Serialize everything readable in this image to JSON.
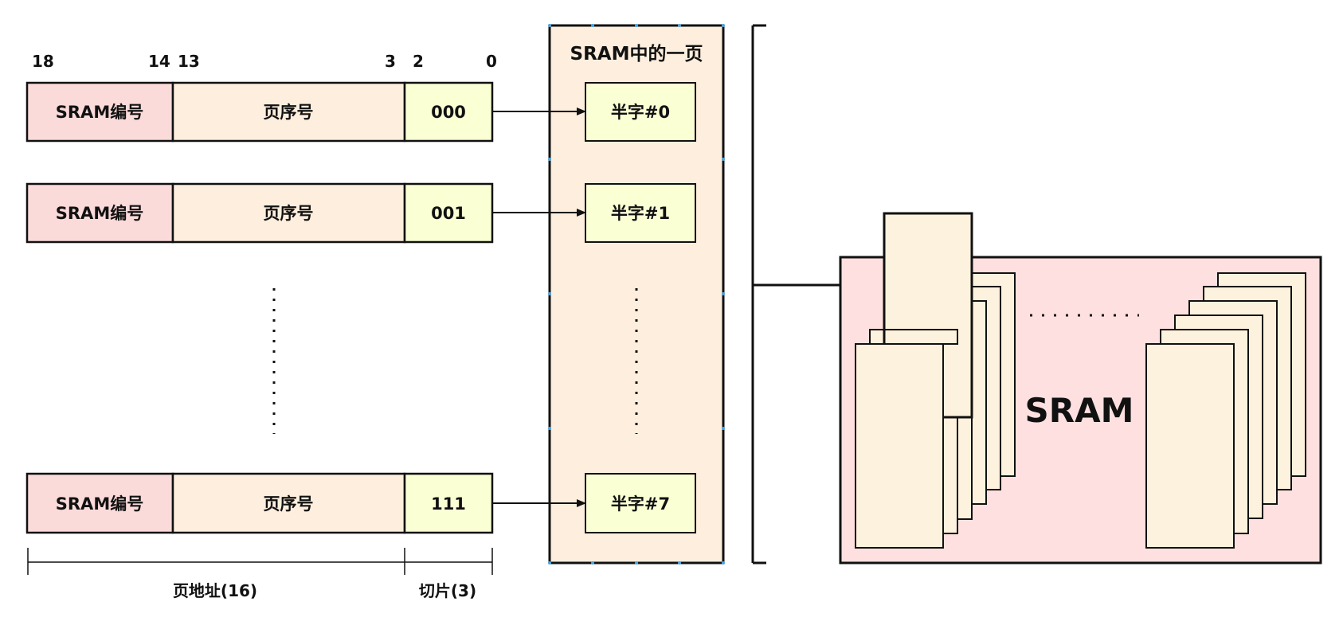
{
  "colors": {
    "sram_field": "#fbdada",
    "page_field": "#fdeedd",
    "slice_field": "#fbffd4",
    "page_box": "#fdeedd",
    "halfword_box": "#fbffd4",
    "sram_chip": "#fde0df",
    "chip_slice": "#fdf2dd",
    "stroke": "#111111"
  },
  "bit_labels": [
    "18",
    "14",
    "13",
    "3",
    "2",
    "0"
  ],
  "address_rows": [
    {
      "sram_label": "SRAM编号",
      "page_label": "页序号",
      "slice_value": "000",
      "halfword_label": "半字#0"
    },
    {
      "sram_label": "SRAM编号",
      "page_label": "页序号",
      "slice_value": "001",
      "halfword_label": "半字#1"
    },
    {
      "sram_label": "SRAM编号",
      "page_label": "页序号",
      "slice_value": "111",
      "halfword_label": "半字#7"
    }
  ],
  "page_box_title": "SRAM中的一页",
  "bottom_labels": {
    "page_address": "页地址(16)",
    "slice": "切片(3)"
  },
  "sram_title": "SRAM"
}
